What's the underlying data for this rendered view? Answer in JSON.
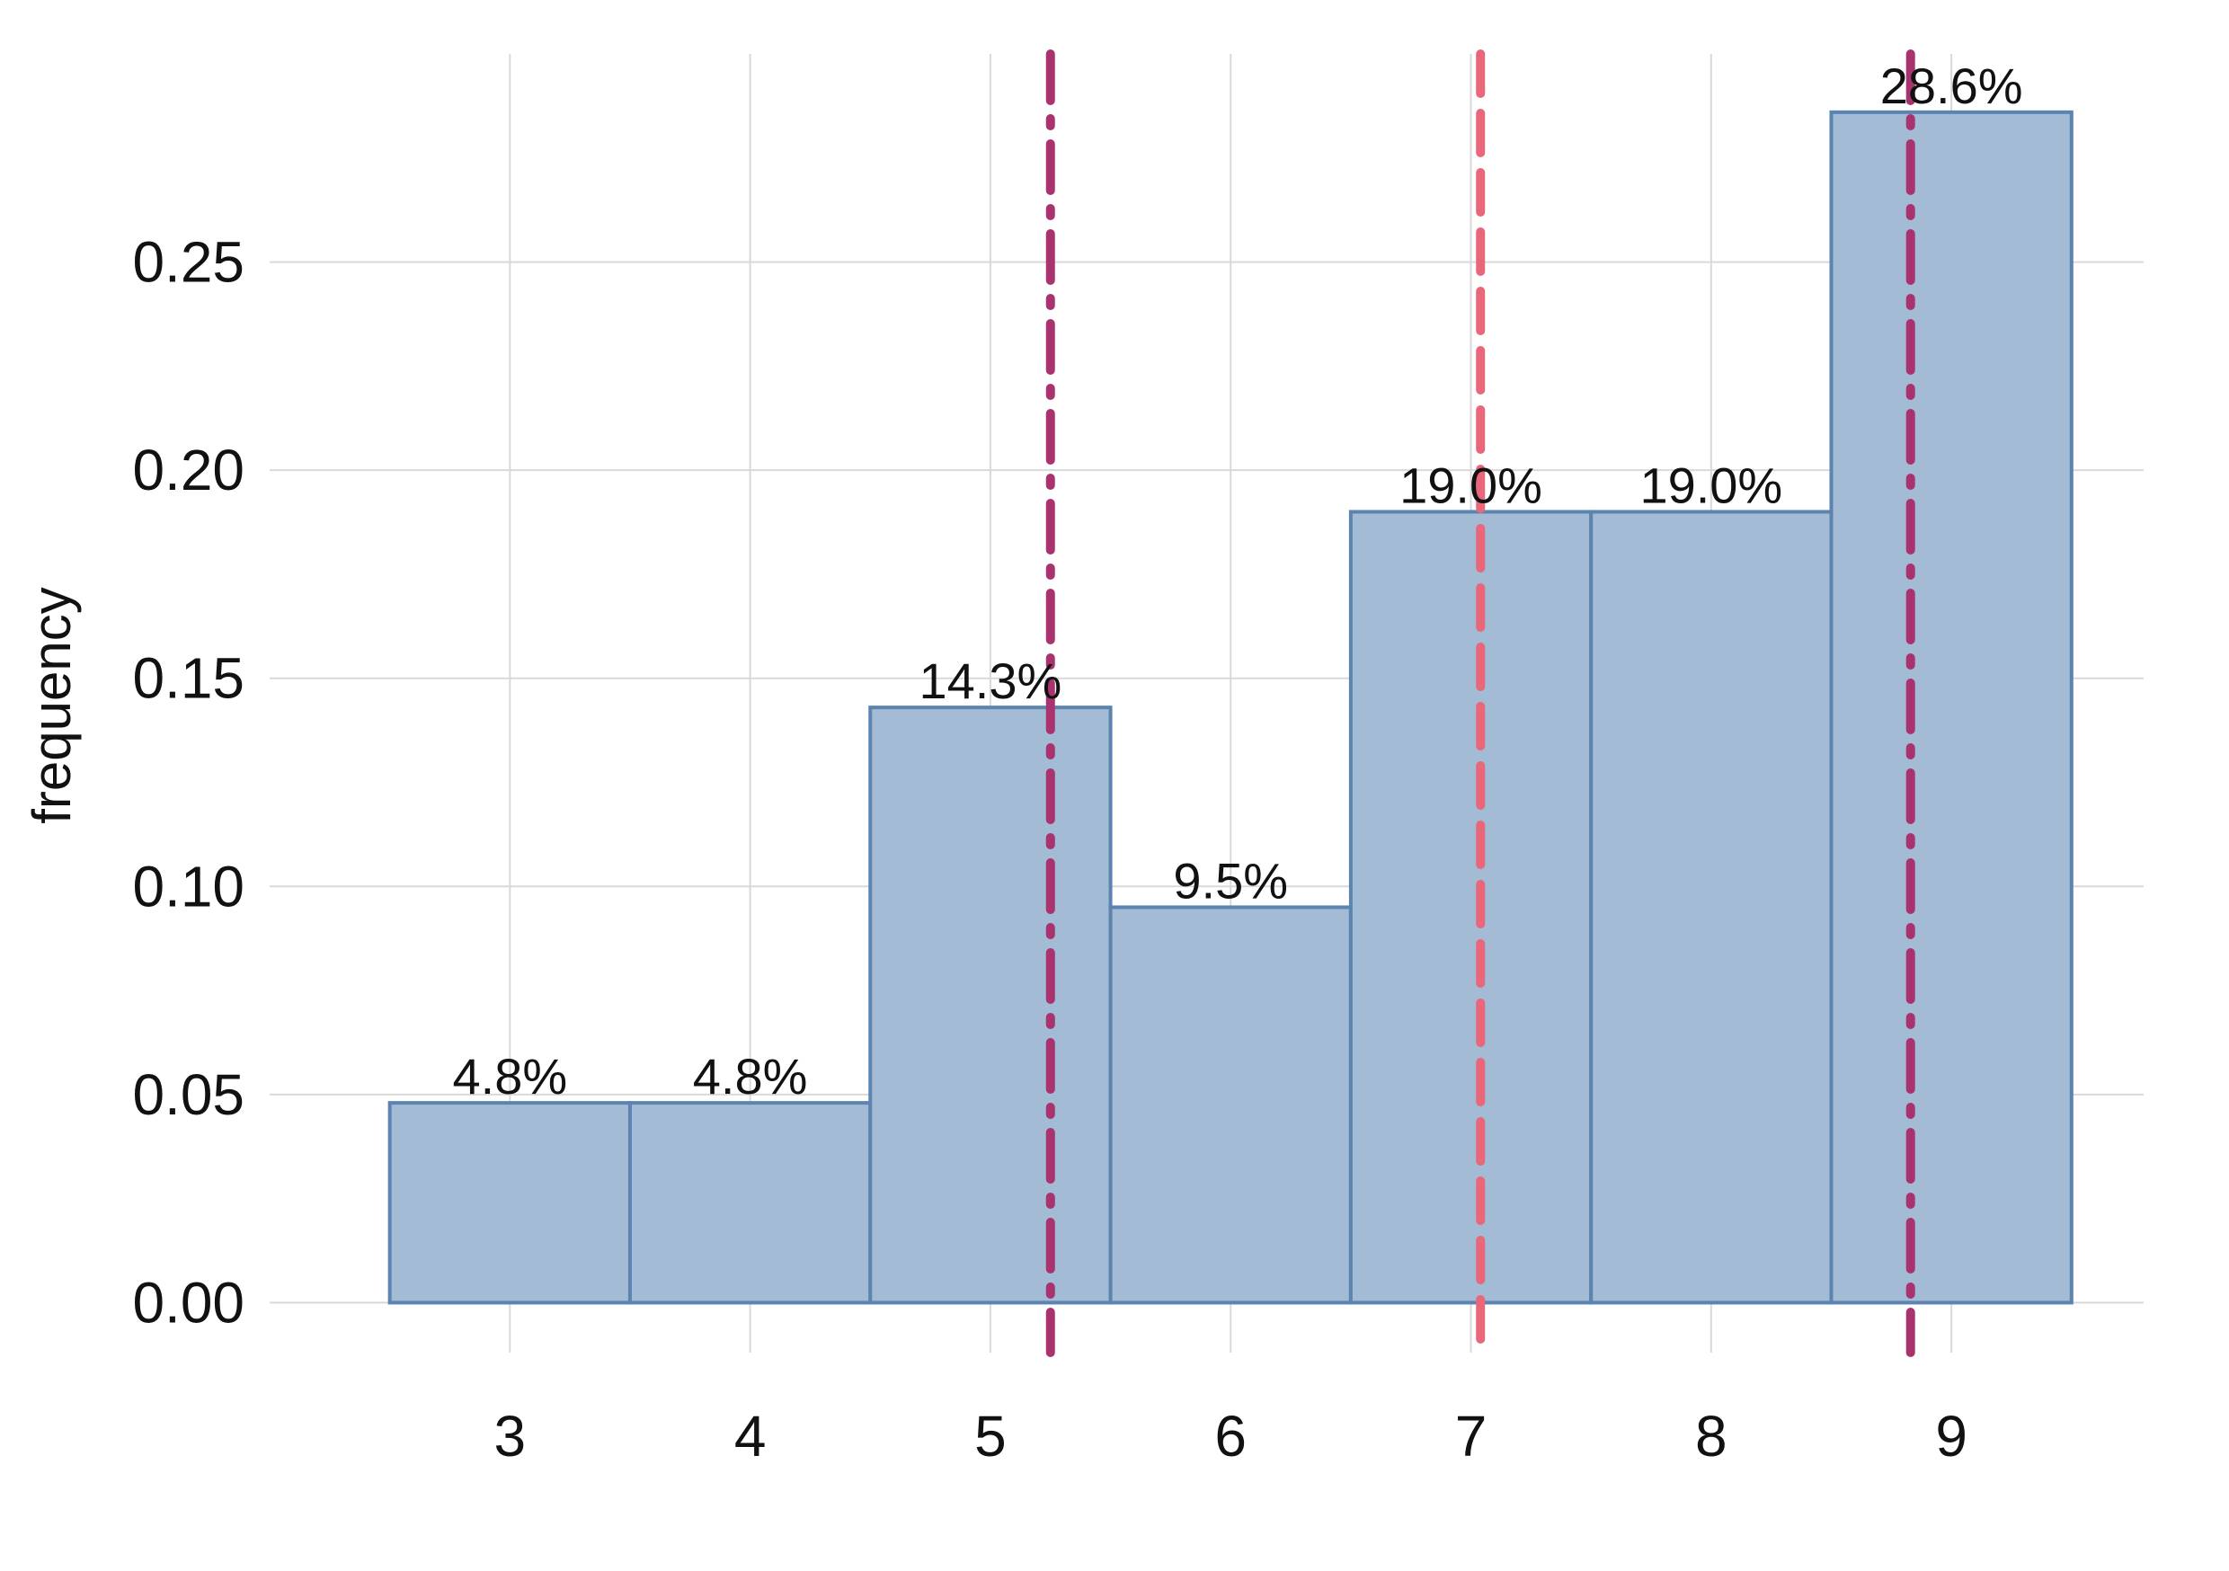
{
  "chart_data": {
    "type": "bar",
    "subtype": "histogram",
    "categories": [
      "3",
      "4",
      "5",
      "6",
      "7",
      "8",
      "9"
    ],
    "x": [
      3,
      4,
      5,
      6,
      7,
      8,
      9
    ],
    "values": [
      0.048,
      0.048,
      0.143,
      0.095,
      0.19,
      0.19,
      0.286
    ],
    "data_labels": [
      "4.8%",
      "4.8%",
      "14.3%",
      "9.5%",
      "19.0%",
      "19.0%",
      "28.6%"
    ],
    "bin_width": 1,
    "title": "",
    "xlabel": "",
    "ylabel": "frequency",
    "xlim": [
      2.0,
      9.8
    ],
    "ylim": [
      -0.012,
      0.3
    ],
    "yticks": [
      0.0,
      0.05,
      0.1,
      0.15,
      0.2,
      0.25
    ],
    "ytick_labels": [
      "0.00",
      "0.05",
      "0.10",
      "0.15",
      "0.20",
      "0.25"
    ],
    "xticks": [
      3,
      4,
      5,
      6,
      7,
      8,
      9
    ],
    "xtick_labels": [
      "3",
      "4",
      "5",
      "6",
      "7",
      "8",
      "9"
    ],
    "grid": true,
    "legend": "none",
    "bar_fill": "#a3bbd4",
    "bar_edge": "#5b84b1",
    "reference_lines": [
      {
        "x": 5.25,
        "style": "dashdot",
        "color": "#a8336e"
      },
      {
        "x": 7.04,
        "style": "dashed",
        "color": "#e8677a"
      },
      {
        "x": 8.83,
        "style": "dashdot",
        "color": "#a8336e"
      }
    ]
  }
}
